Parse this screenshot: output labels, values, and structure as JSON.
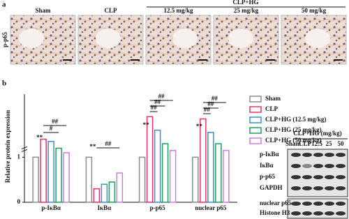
{
  "panel_a": {
    "label": "a",
    "row_label": "p-p65",
    "group_label": "CLP+HG",
    "columns": [
      "Sham",
      "CLP",
      "12.5 mg/kg",
      "25 mg/kg",
      "50 mg/kg"
    ]
  },
  "panel_b": {
    "label": "b"
  },
  "chart_data": {
    "type": "bar",
    "y_label": "Relative protein expression",
    "categories": [
      "p-IκBα",
      "IκBα",
      "p-p65",
      "nuclear p65"
    ],
    "series": [
      {
        "name": "Sham",
        "color": "#8c8c8c",
        "values": [
          1,
          1,
          1,
          1
        ]
      },
      {
        "name": "CLP",
        "color": "#e8336b",
        "values": [
          1.4,
          0.3,
          1.9,
          1.85
        ]
      },
      {
        "name": "CLP+HG (12.5 mg/kg)",
        "color": "#3b8fd4",
        "values": [
          1.35,
          0.4,
          1.6,
          1.55
        ]
      },
      {
        "name": "CLP+HG (25 mg/kg)",
        "color": "#1aa15a",
        "values": [
          1.2,
          0.45,
          1.3,
          1.3
        ]
      },
      {
        "name": "CLP+HG (50 mg/kg)",
        "color": "#d07be0",
        "values": [
          1.1,
          0.65,
          1.15,
          1.15
        ]
      }
    ],
    "ylim": [
      0,
      2.4
    ],
    "yticks": [
      0,
      1
    ],
    "annotations": [
      "**",
      "#",
      "##",
      "**",
      "##",
      "**",
      "##",
      "##",
      "##",
      "**",
      "##",
      "##",
      "##"
    ]
  },
  "blot": {
    "group_label": "CLP+HG (mg/kg)",
    "lanes": [
      "Sham",
      "CLP",
      "12.5",
      "25",
      "50"
    ],
    "rows": [
      "p-IκBα",
      "IκBα",
      "p-p65",
      "GAPDH",
      "nuclear p65",
      "Histone H3"
    ]
  }
}
